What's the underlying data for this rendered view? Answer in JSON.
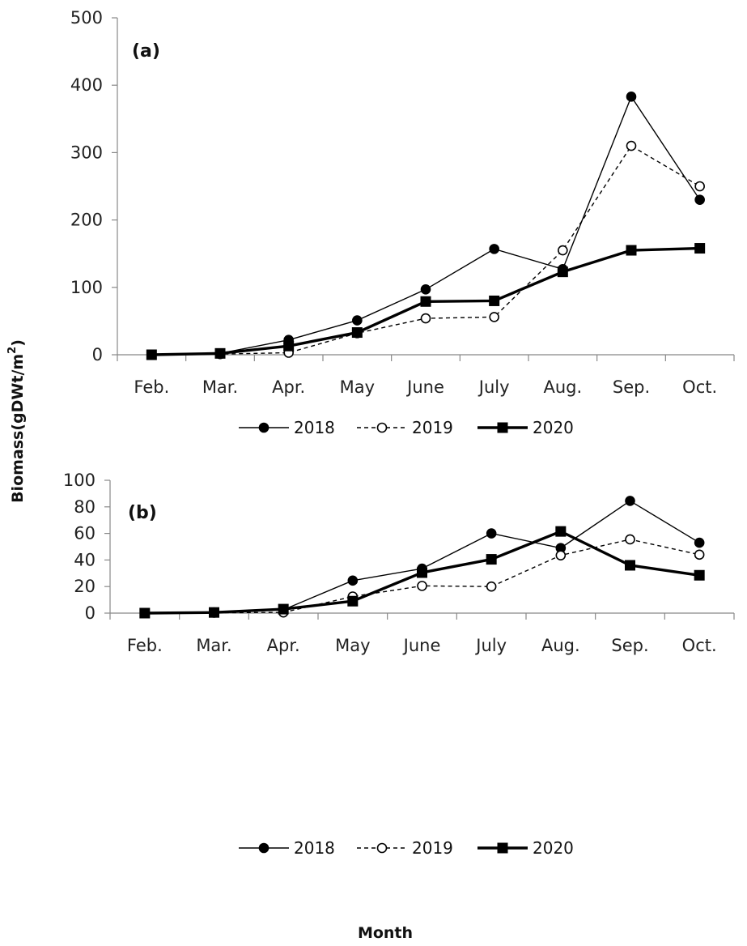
{
  "chart_data": [
    {
      "type": "line",
      "panel_label": "(a)",
      "categories": [
        "Feb.",
        "Mar.",
        "Apr.",
        "May",
        "June",
        "July",
        "Aug.",
        "Sep.",
        "Oct."
      ],
      "ylim": [
        0,
        500
      ],
      "yticks": [
        0,
        100,
        200,
        300,
        400,
        500
      ],
      "series": [
        {
          "name": "2018",
          "style": "filled-circle-thin",
          "values": [
            0,
            2,
            22,
            51,
            97,
            157,
            127,
            383,
            230
          ]
        },
        {
          "name": "2019",
          "style": "open-circle-dashed",
          "values": [
            0,
            1,
            3,
            32,
            54,
            56,
            155,
            310,
            250
          ]
        },
        {
          "name": "2020",
          "style": "filled-square-thick",
          "values": [
            0,
            2,
            13,
            33,
            79,
            80,
            123,
            155,
            158
          ]
        }
      ]
    },
    {
      "type": "line",
      "panel_label": "(b)",
      "categories": [
        "Feb.",
        "Mar.",
        "Apr.",
        "May",
        "June",
        "July",
        "Aug.",
        "Sep.",
        "Oct."
      ],
      "ylim": [
        0,
        100
      ],
      "yticks": [
        0,
        20,
        40,
        60,
        80,
        100
      ],
      "series": [
        {
          "name": "2018",
          "style": "filled-circle-thin",
          "values": [
            0,
            0.5,
            2.5,
            24.5,
            33.5,
            60,
            49,
            84.5,
            53
          ]
        },
        {
          "name": "2019",
          "style": "open-circle-dashed",
          "values": [
            0,
            0.3,
            0.5,
            12.5,
            20.5,
            20,
            43.5,
            55.5,
            44
          ]
        },
        {
          "name": "2020",
          "style": "filled-square-thick",
          "values": [
            0,
            0.5,
            3,
            9,
            30.5,
            40.5,
            61.5,
            36,
            28.5
          ]
        }
      ]
    }
  ],
  "ylabel": "Biomass(gDWt/m",
  "ylabel_superscript": "2",
  "ylabel_close": ")",
  "xlabel": "Month"
}
